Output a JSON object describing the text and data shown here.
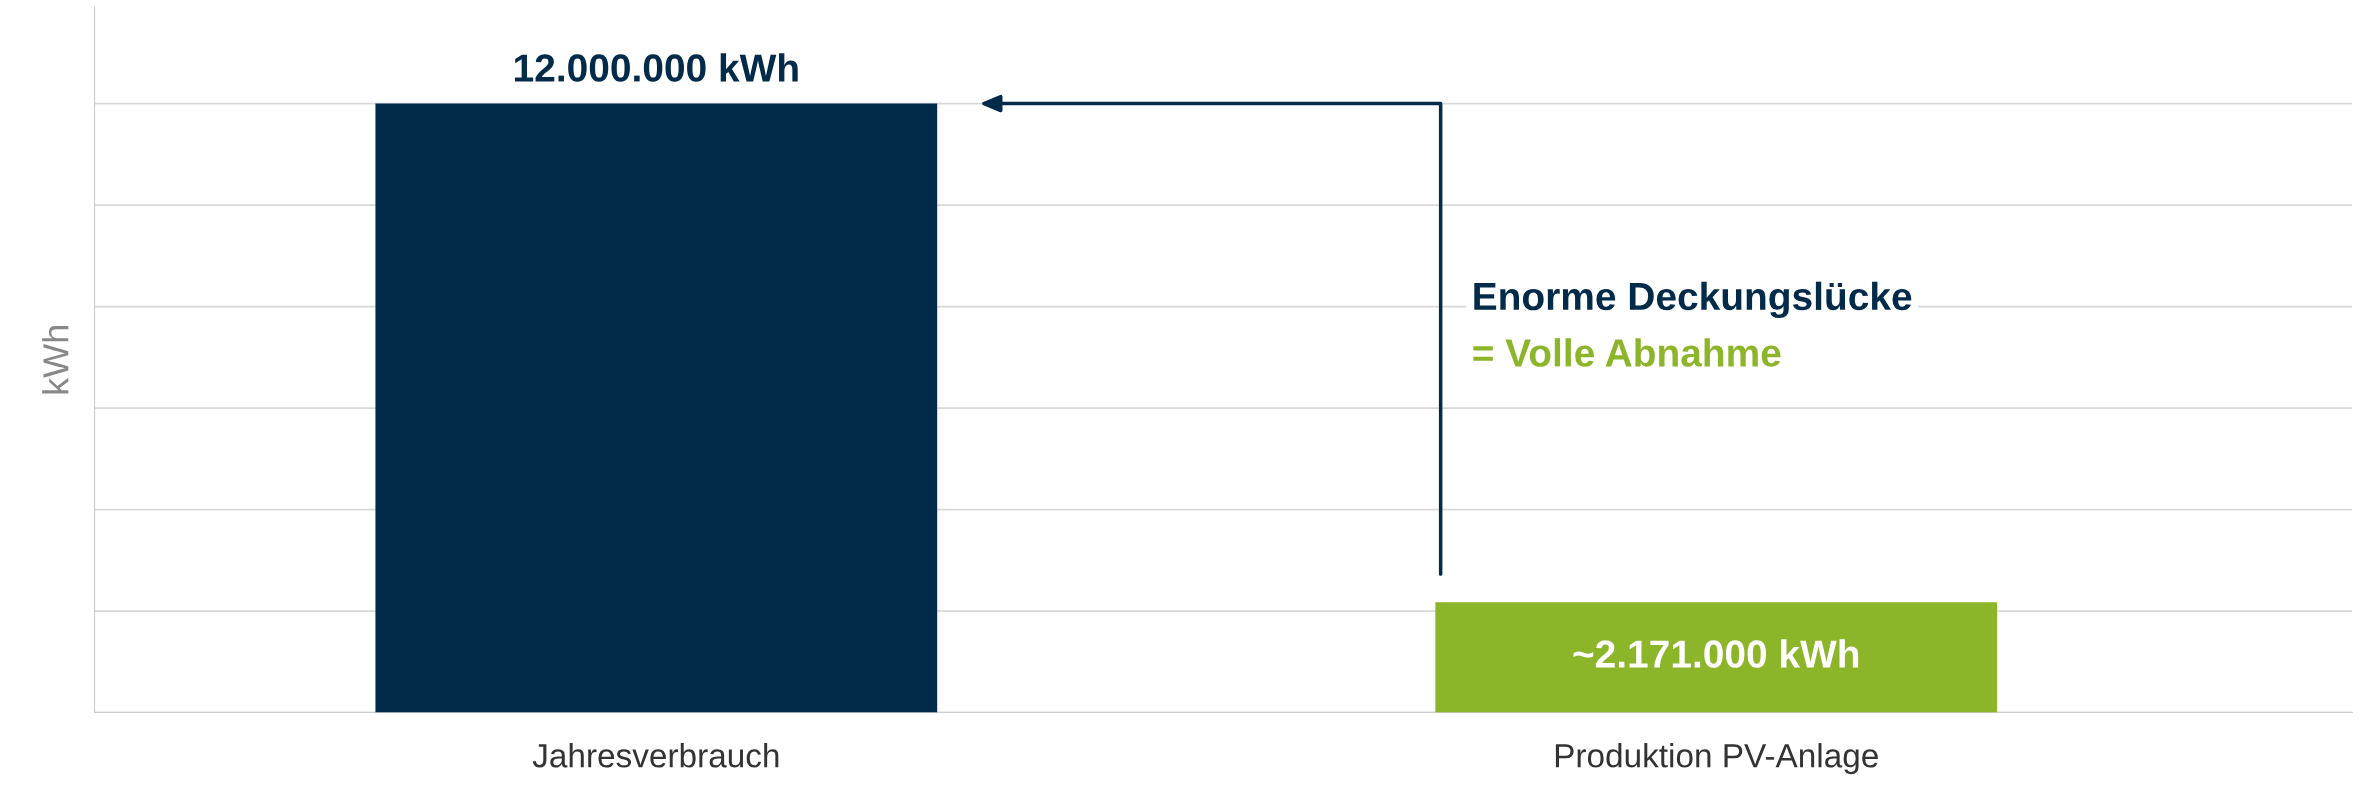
{
  "chart_data": {
    "type": "bar",
    "ylabel": "kWh",
    "categories": [
      "Jahresverbrauch",
      "Produktion PV-Anlage"
    ],
    "values": [
      12000000,
      2171000
    ],
    "colors": [
      "#022b4a",
      "#8cb52a"
    ],
    "value_labels": [
      "12.000.000 kWh",
      "~2.171.000 kWh"
    ],
    "ylim": [
      0,
      13900000
    ],
    "yticks": [
      {
        "value": 0,
        "label": null
      },
      {
        "value": 2000000,
        "label": null
      },
      {
        "value": 4000000,
        "label": null
      },
      {
        "value": 6000000,
        "label": null
      },
      {
        "value": 8000000,
        "label": null
      },
      {
        "value": 10000000,
        "label": null
      },
      {
        "value": 12000000,
        "label": null
      }
    ],
    "grid": "y",
    "annotations": [
      "Enorme Deckungslücke",
      "= Volle Abnahme"
    ]
  }
}
